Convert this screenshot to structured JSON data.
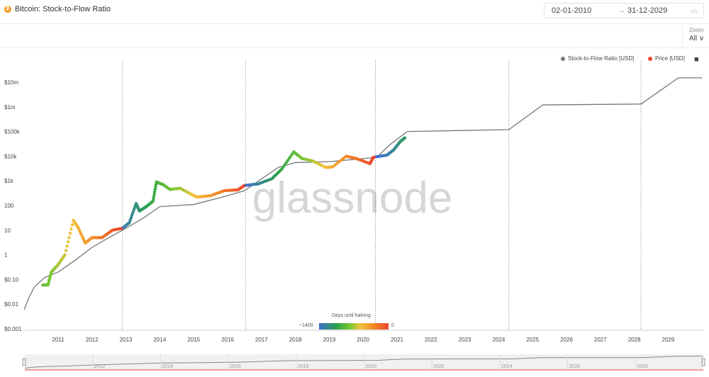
{
  "header": {
    "title": "Bitcoin: Stock-to-Flow Ratio",
    "date_from": "02-01-2010",
    "date_to": "31-12-2029",
    "arrow": "→",
    "zoom_label": "Zoom",
    "zoom_value": "All ∨"
  },
  "legend": {
    "s2f": "Stock-to-Flow Ratio [USD]",
    "price": "Price [USD]"
  },
  "watermark": "glassnode",
  "colorbar": {
    "title": "Days until halving",
    "min": "~1400",
    "max": "0"
  },
  "colors": {
    "s2f": "#777777",
    "price": "#e8452c",
    "grid": "#555555"
  },
  "navigator_labels": [
    "2012",
    "2014",
    "2016",
    "2018",
    "2020",
    "2022",
    "2024",
    "2026",
    "2028"
  ],
  "chart_data": {
    "type": "line",
    "title": "Bitcoin: Stock-to-Flow Ratio",
    "yscale": "log",
    "ylim": [
      0.001,
      30000000
    ],
    "xlim": [
      2010.0,
      2030.0
    ],
    "ytick_values": [
      10000000,
      1000000,
      100000,
      10000,
      1000,
      100,
      10,
      1,
      0.1,
      0.01,
      0.001
    ],
    "ytick_labels": [
      "$10m",
      "$1m",
      "$100k",
      "$10k",
      "$1k",
      "100",
      "10",
      "1",
      "$0.10",
      "$0.01",
      "$0.001"
    ],
    "xtick_labels": [
      "2011",
      "2012",
      "2013",
      "2014",
      "2015",
      "2016",
      "2017",
      "2018",
      "2019",
      "2020",
      "2021",
      "2022",
      "2023",
      "2024",
      "2025",
      "2026",
      "2027",
      "2028",
      "2029"
    ],
    "halvings": [
      2012.9,
      2016.53,
      2020.36,
      2024.3,
      2028.2
    ],
    "series": [
      {
        "name": "Stock-to-Flow Ratio [USD]",
        "x": [
          2010.0,
          2010.15,
          2010.3,
          2010.6,
          2011.0,
          2011.5,
          2012.0,
          2012.5,
          2012.9,
          2013.5,
          2014.0,
          2015.0,
          2016.0,
          2016.5,
          2017.0,
          2017.5,
          2018.0,
          2019.0,
          2020.0,
          2020.4,
          2020.8,
          2021.3,
          2024.3,
          2025.3,
          2028.2,
          2029.3,
          2030.0
        ],
        "y": [
          0.006,
          0.02,
          0.05,
          0.12,
          0.2,
          0.6,
          2,
          5,
          10,
          30,
          90,
          110,
          250,
          400,
          1200,
          3500,
          5500,
          6000,
          8000,
          9000,
          30000,
          100000,
          120000,
          1200000,
          1300000,
          15000000,
          15000000
        ]
      },
      {
        "name": "Price [USD]",
        "x": [
          2010.55,
          2010.7,
          2010.8,
          2011.0,
          2011.2,
          2011.45,
          2011.6,
          2011.8,
          2012.0,
          2012.3,
          2012.6,
          2012.9,
          2013.1,
          2013.3,
          2013.4,
          2013.6,
          2013.8,
          2013.9,
          2014.1,
          2014.3,
          2014.6,
          2014.9,
          2015.1,
          2015.5,
          2015.9,
          2016.3,
          2016.5,
          2016.9,
          2017.3,
          2017.6,
          2017.95,
          2018.2,
          2018.5,
          2018.9,
          2019.1,
          2019.5,
          2019.8,
          2020.2,
          2020.3,
          2020.7,
          2020.9,
          2021.1,
          2021.25
        ],
        "y": [
          0.06,
          0.06,
          0.2,
          0.4,
          1,
          25,
          12,
          3,
          5,
          5,
          10,
          12,
          20,
          120,
          60,
          90,
          150,
          900,
          700,
          450,
          500,
          300,
          220,
          250,
          400,
          430,
          650,
          750,
          1200,
          3000,
          15000,
          8000,
          6500,
          3500,
          3700,
          10000,
          8000,
          5000,
          9000,
          11000,
          18000,
          40000,
          58000
        ]
      }
    ]
  }
}
